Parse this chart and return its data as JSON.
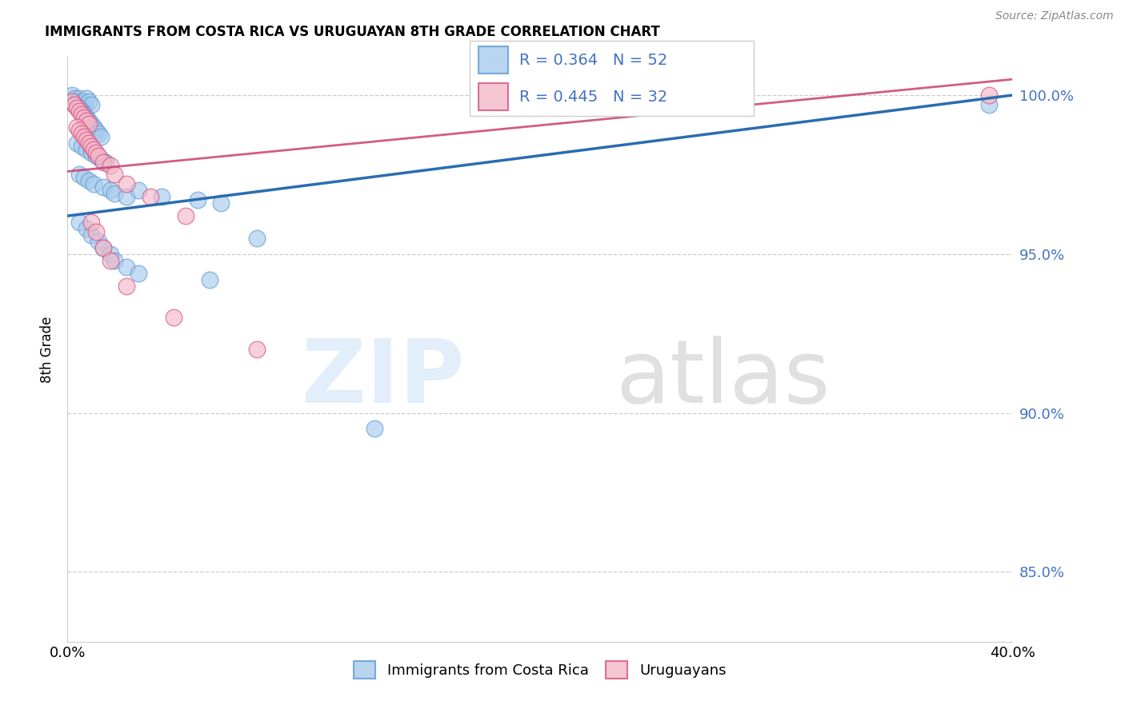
{
  "title": "IMMIGRANTS FROM COSTA RICA VS URUGUAYAN 8TH GRADE CORRELATION CHART",
  "source": "Source: ZipAtlas.com",
  "ylabel": "8th Grade",
  "xlim": [
    0.0,
    0.4
  ],
  "ylim": [
    0.828,
    1.012
  ],
  "yticks": [
    0.85,
    0.9,
    0.95,
    1.0
  ],
  "ytick_labels": [
    "85.0%",
    "90.0%",
    "95.0%",
    "100.0%"
  ],
  "legend_label1": "Immigrants from Costa Rica",
  "legend_label2": "Uruguayans",
  "R1": 0.364,
  "N1": 52,
  "R2": 0.445,
  "N2": 32,
  "color1": "#a8caeb",
  "color2": "#f4b8c8",
  "edge1": "#5b9bd5",
  "edge2": "#d75080",
  "trendline1_color": "#2b6cb0",
  "trendline2_color": "#c94070",
  "blue_x": [
    0.002,
    0.003,
    0.004,
    0.005,
    0.006,
    0.007,
    0.008,
    0.009,
    0.01,
    0.003,
    0.005,
    0.006,
    0.007,
    0.008,
    0.009,
    0.01,
    0.011,
    0.012,
    0.013,
    0.014,
    0.004,
    0.006,
    0.008,
    0.01,
    0.012,
    0.014,
    0.016,
    0.005,
    0.007,
    0.009,
    0.011,
    0.015,
    0.018,
    0.02,
    0.025,
    0.03,
    0.04,
    0.055,
    0.065,
    0.08,
    0.005,
    0.008,
    0.01,
    0.013,
    0.015,
    0.018,
    0.02,
    0.025,
    0.03,
    0.06,
    0.13,
    0.39
  ],
  "blue_y": [
    1.0,
    0.999,
    0.998,
    0.999,
    0.998,
    0.997,
    0.999,
    0.998,
    0.997,
    0.997,
    0.996,
    0.995,
    0.994,
    0.993,
    0.992,
    0.991,
    0.99,
    0.989,
    0.988,
    0.987,
    0.985,
    0.984,
    0.983,
    0.982,
    0.981,
    0.98,
    0.979,
    0.975,
    0.974,
    0.973,
    0.972,
    0.971,
    0.97,
    0.969,
    0.968,
    0.97,
    0.968,
    0.967,
    0.966,
    0.955,
    0.96,
    0.958,
    0.956,
    0.954,
    0.952,
    0.95,
    0.948,
    0.946,
    0.944,
    0.942,
    0.895,
    0.997
  ],
  "pink_x": [
    0.002,
    0.003,
    0.004,
    0.005,
    0.006,
    0.007,
    0.008,
    0.009,
    0.004,
    0.005,
    0.006,
    0.007,
    0.008,
    0.009,
    0.01,
    0.011,
    0.012,
    0.013,
    0.015,
    0.018,
    0.02,
    0.025,
    0.035,
    0.05,
    0.01,
    0.012,
    0.015,
    0.018,
    0.025,
    0.045,
    0.08,
    0.39
  ],
  "pink_y": [
    0.998,
    0.997,
    0.996,
    0.995,
    0.994,
    0.993,
    0.992,
    0.991,
    0.99,
    0.989,
    0.988,
    0.987,
    0.986,
    0.985,
    0.984,
    0.983,
    0.982,
    0.981,
    0.979,
    0.978,
    0.975,
    0.972,
    0.968,
    0.962,
    0.96,
    0.957,
    0.952,
    0.948,
    0.94,
    0.93,
    0.92,
    1.0
  ],
  "blue_trend_x0": 0.0,
  "blue_trend_y0": 0.962,
  "blue_trend_x1": 0.4,
  "blue_trend_y1": 1.0,
  "pink_trend_x0": 0.0,
  "pink_trend_y0": 0.976,
  "pink_trend_x1": 0.4,
  "pink_trend_y1": 1.005
}
